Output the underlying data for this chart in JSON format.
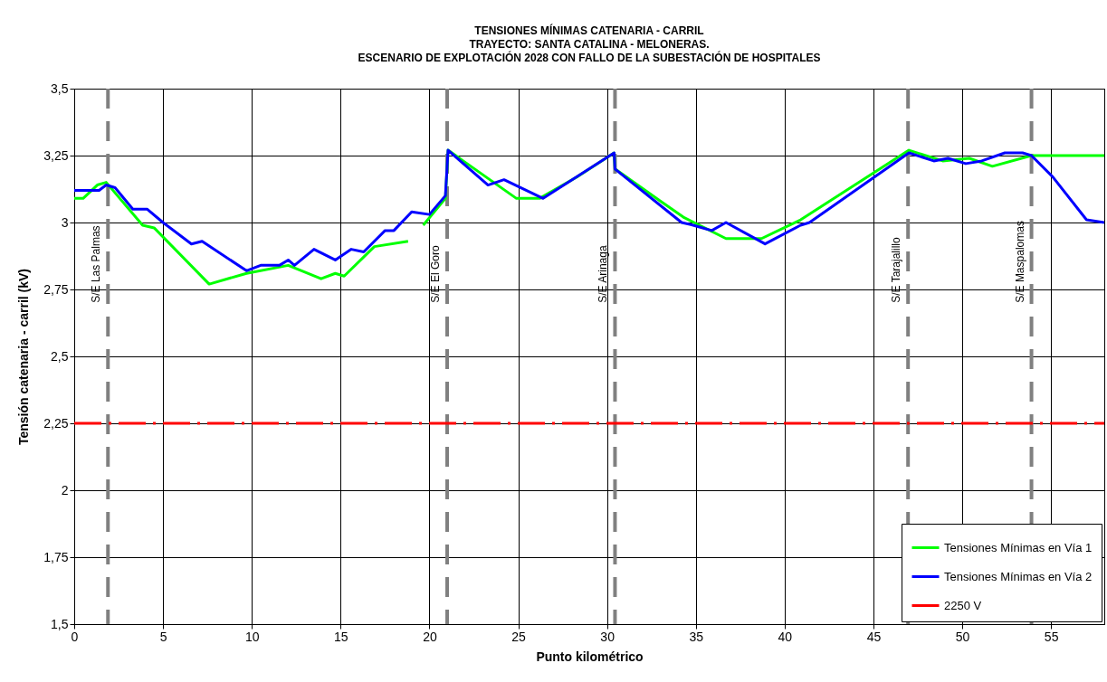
{
  "chart_data": {
    "type": "line",
    "title": "TENSIONES MÍNIMAS CATENARIA - CARRIL\nTRAYECTO: SANTA CATALINA  - MELONERAS.\nESCENARIO DE EXPLOTACIÓN 2028 CON FALLO DE LA SUBESTACIÓN DE HOSPITALES",
    "xlabel": "Punto kilométrico",
    "ylabel": "Tensión catenaria  - carril (kV)",
    "xlim": [
      0,
      58
    ],
    "xticks": [
      0,
      5,
      10,
      15,
      20,
      25,
      30,
      35,
      40,
      45,
      50,
      55
    ],
    "ylim": [
      1.5,
      3.5
    ],
    "yticks": [
      {
        "value": 1.5,
        "label": "1,5"
      },
      {
        "value": 1.75,
        "label": "1,75"
      },
      2,
      {
        "value": 2.25,
        "label": "2,25"
      },
      {
        "value": 2.5,
        "label": "2,5"
      },
      {
        "value": 2.75,
        "label": "2,75"
      },
      3,
      {
        "value": 3.25,
        "label": "3,25"
      },
      {
        "value": 3.5,
        "label": "3,5"
      }
    ],
    "grid": true,
    "legend": "bottom right",
    "series": [
      {
        "name": "Tensiones Mínimas en Vía 1",
        "color": "#00ff00",
        "x": [
          0,
          0.5,
          1.3,
          1.8,
          3.85,
          4.5,
          7.6,
          9.7,
          12.05,
          13.9,
          14.7,
          15.2,
          16.9,
          18.8,
          19.2,
          19.65,
          20.9,
          21.05,
          24.9,
          26.2,
          28.3,
          30.4,
          30.45,
          33.0,
          34.3,
          36.7,
          38.7,
          40.9,
          47.0,
          48.9,
          50.4,
          51.7,
          53.9,
          58
        ],
        "values": [
          3.09,
          3.09,
          3.14,
          3.15,
          2.99,
          2.98,
          2.77,
          2.81,
          2.84,
          2.79,
          2.81,
          2.8,
          2.91,
          2.93,
          null,
          2.99,
          3.09,
          3.27,
          3.09,
          3.09,
          3.17,
          3.26,
          3.2,
          3.08,
          3.02,
          2.94,
          2.94,
          3.01,
          3.27,
          3.23,
          3.24,
          3.21,
          3.25,
          3.25
        ]
      },
      {
        "name": "Tensiones Mínimas en Vía 2",
        "color": "#0000ff",
        "x": [
          0,
          1.4,
          1.8,
          2.3,
          3.3,
          4.1,
          5.0,
          6.6,
          7.2,
          9.7,
          10.5,
          11.55,
          12.05,
          12.4,
          13.5,
          14.7,
          15.6,
          16.3,
          17.5,
          18.0,
          19.0,
          20.0,
          20.9,
          21.05,
          23.3,
          24.2,
          26.4,
          30.4,
          30.45,
          34.2,
          34.85,
          35.9,
          36.7,
          38.9,
          40.9,
          41.4,
          47.0,
          48.4,
          49.2,
          50.2,
          51.1,
          52.4,
          53.4,
          53.9,
          55.1,
          57.0,
          58
        ],
        "values": [
          3.12,
          3.12,
          3.14,
          3.13,
          3.05,
          3.05,
          3.0,
          2.92,
          2.93,
          2.82,
          2.84,
          2.84,
          2.86,
          2.84,
          2.9,
          2.86,
          2.9,
          2.89,
          2.97,
          2.97,
          3.04,
          3.03,
          3.1,
          3.27,
          3.14,
          3.16,
          3.09,
          3.26,
          3.2,
          3.0,
          2.99,
          2.97,
          3.0,
          2.92,
          2.99,
          3.0,
          3.26,
          3.23,
          3.24,
          3.22,
          3.23,
          3.26,
          3.26,
          3.25,
          3.17,
          3.01,
          3.0
        ]
      },
      {
        "name": "2250 V",
        "color": "#ff0000",
        "line_style": "dashed",
        "x": [
          0,
          58
        ],
        "values": [
          2.25,
          2.25
        ]
      }
    ],
    "ref_lines": [
      {
        "axis": "x",
        "value": 1.9,
        "label": "S/E Las Palmas",
        "color": "#808080",
        "line_style": "dashed"
      },
      {
        "axis": "x",
        "value": 21.0,
        "label": "S/E El Goro",
        "color": "#808080",
        "line_style": "dashed"
      },
      {
        "axis": "x",
        "value": 30.45,
        "label": "S/E Arinaga",
        "color": "#808080",
        "line_style": "dashed"
      },
      {
        "axis": "x",
        "value": 46.95,
        "label": "S/E Tarajalillo",
        "color": "#808080",
        "line_style": "dashed"
      },
      {
        "axis": "x",
        "value": 53.9,
        "label": "S/E Maspalomas",
        "color": "#808080",
        "line_style": "dashed"
      }
    ]
  }
}
